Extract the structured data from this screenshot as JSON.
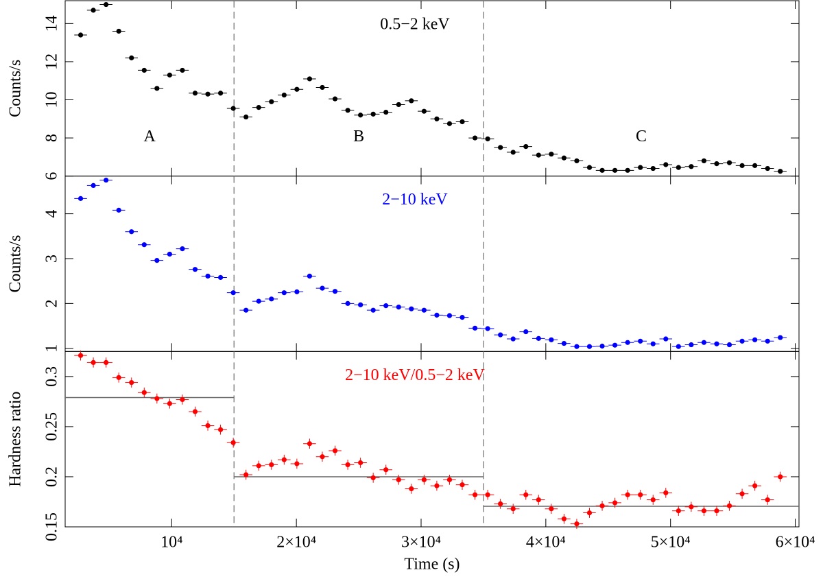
{
  "boundaries": [
    15000,
    35000
  ],
  "chart_data": [
    {
      "type": "errorbar",
      "ylabel": "Counts/s",
      "annotation": "0.5−2 keV",
      "annotation_color": "#000000",
      "segment_labels": [
        "A",
        "B",
        "C"
      ],
      "ylim": [
        6,
        15.2
      ],
      "yticks": [
        6,
        8,
        10,
        12,
        14
      ],
      "series": [
        {
          "color": "#000000",
          "xerr": 510,
          "yerr": 0.08,
          "x": [
            2700,
            3720,
            4740,
            5760,
            6780,
            7800,
            8820,
            9840,
            10860,
            11880,
            12900,
            13920,
            14940,
            15960,
            16980,
            18000,
            19020,
            20040,
            21060,
            22080,
            23100,
            24120,
            25140,
            26160,
            27180,
            28200,
            29220,
            30240,
            31260,
            32280,
            33300,
            34320,
            35340,
            36360,
            37380,
            38400,
            39420,
            40440,
            41460,
            42480,
            43500,
            44520,
            45540,
            46560,
            47580,
            48600,
            49620,
            50640,
            51660,
            52680,
            53700,
            54720,
            55740,
            56760,
            57780,
            58800
          ],
          "values": [
            13.4,
            14.7,
            15.0,
            13.6,
            12.2,
            11.55,
            10.6,
            11.3,
            11.55,
            10.35,
            10.3,
            10.35,
            9.55,
            9.1,
            9.6,
            9.9,
            10.25,
            10.55,
            11.1,
            10.65,
            10.05,
            9.45,
            9.2,
            9.25,
            9.35,
            9.75,
            9.95,
            9.4,
            9.0,
            8.75,
            8.85,
            8.0,
            7.95,
            7.5,
            7.25,
            7.55,
            7.1,
            7.15,
            6.95,
            6.8,
            6.45,
            6.3,
            6.3,
            6.3,
            6.45,
            6.4,
            6.6,
            6.45,
            6.5,
            6.8,
            6.65,
            6.7,
            6.55,
            6.55,
            6.4,
            6.25
          ]
        }
      ]
    },
    {
      "type": "errorbar",
      "ylabel": "Counts/s",
      "annotation": "2−10 keV",
      "annotation_color": "#0000ff",
      "ylim": [
        0.93,
        4.84
      ],
      "yticks": [
        1,
        2,
        3,
        4
      ],
      "series": [
        {
          "color": "#0000ff",
          "xerr": 510,
          "yerr": 0.03,
          "x": [
            2700,
            3720,
            4740,
            5760,
            6780,
            7800,
            8820,
            9840,
            10860,
            11880,
            12900,
            13920,
            14940,
            15960,
            16980,
            18000,
            19020,
            20040,
            21060,
            22080,
            23100,
            24120,
            25140,
            26160,
            27180,
            28200,
            29220,
            30240,
            31260,
            32280,
            33300,
            34320,
            35340,
            36360,
            37380,
            38400,
            39420,
            40440,
            41460,
            42480,
            43500,
            44520,
            45540,
            46560,
            47580,
            48600,
            49620,
            50640,
            51660,
            52680,
            53700,
            54720,
            55740,
            56760,
            57780,
            58800
          ],
          "values": [
            4.34,
            4.63,
            4.75,
            4.08,
            3.6,
            3.31,
            2.96,
            3.1,
            3.22,
            2.76,
            2.61,
            2.58,
            2.24,
            1.85,
            2.05,
            2.1,
            2.24,
            2.26,
            2.61,
            2.34,
            2.27,
            2.0,
            1.97,
            1.85,
            1.95,
            1.92,
            1.88,
            1.85,
            1.74,
            1.73,
            1.69,
            1.45,
            1.44,
            1.3,
            1.21,
            1.37,
            1.22,
            1.19,
            1.11,
            1.04,
            1.04,
            1.05,
            1.07,
            1.13,
            1.16,
            1.1,
            1.21,
            1.04,
            1.08,
            1.13,
            1.1,
            1.08,
            1.16,
            1.19,
            1.16,
            1.24
          ]
        }
      ]
    },
    {
      "type": "errorbar",
      "ylabel": "Hardness ratio",
      "annotation": "2−10 keV/0.5−2 keV",
      "annotation_color": "#ff0000",
      "xlabel": "Time (s)",
      "means": [
        0.279,
        0.2,
        0.1705
      ],
      "mean_color": "#666666",
      "xlim": [
        1460,
        60300
      ],
      "xticks": [
        {
          "value": 10000,
          "label": "10⁴"
        },
        {
          "value": 20000,
          "label": "2×10⁴"
        },
        {
          "value": 30000,
          "label": "3×10⁴"
        },
        {
          "value": 40000,
          "label": "4×10⁴"
        },
        {
          "value": 50000,
          "label": "5×10⁴"
        },
        {
          "value": 60000,
          "label": "6×10⁴"
        }
      ],
      "ylim": [
        0.15,
        0.325
      ],
      "yticks": [
        0.15,
        0.2,
        0.25,
        0.3
      ],
      "series": [
        {
          "color": "#ff0000",
          "xerr": 510,
          "yerr": 0.005,
          "x": [
            2700,
            3720,
            4740,
            5760,
            6780,
            7800,
            8820,
            9840,
            10860,
            11880,
            12900,
            13920,
            14940,
            15960,
            16980,
            18000,
            19020,
            20040,
            21060,
            22080,
            23100,
            24120,
            25140,
            26160,
            27180,
            28200,
            29220,
            30240,
            31260,
            32280,
            33300,
            34320,
            35340,
            36360,
            37380,
            38400,
            39420,
            40440,
            41460,
            42480,
            43500,
            44520,
            45540,
            46560,
            47580,
            48600,
            49620,
            50640,
            51660,
            52680,
            53700,
            54720,
            55740,
            56760,
            57780,
            58800
          ],
          "values": [
            0.321,
            0.314,
            0.314,
            0.299,
            0.294,
            0.284,
            0.278,
            0.273,
            0.277,
            0.265,
            0.251,
            0.247,
            0.234,
            0.202,
            0.211,
            0.212,
            0.217,
            0.213,
            0.233,
            0.22,
            0.226,
            0.212,
            0.214,
            0.199,
            0.207,
            0.197,
            0.188,
            0.197,
            0.191,
            0.197,
            0.192,
            0.182,
            0.182,
            0.173,
            0.168,
            0.182,
            0.177,
            0.168,
            0.158,
            0.153,
            0.164,
            0.171,
            0.174,
            0.182,
            0.182,
            0.177,
            0.184,
            0.166,
            0.17,
            0.166,
            0.166,
            0.171,
            0.183,
            0.191,
            0.177,
            0.2
          ]
        }
      ]
    }
  ]
}
